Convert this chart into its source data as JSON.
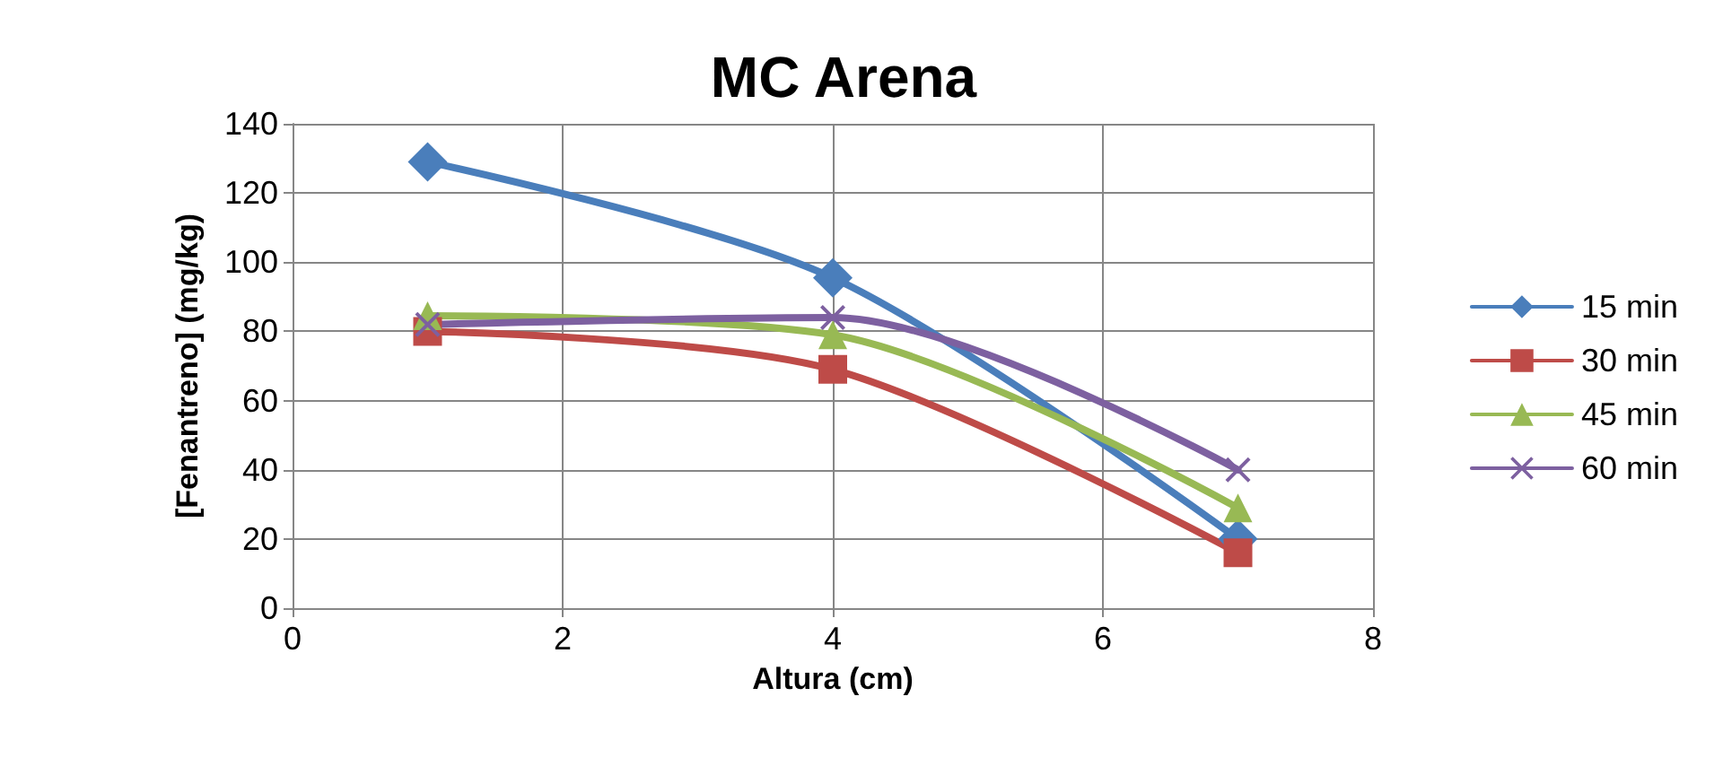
{
  "chart_data": {
    "type": "line",
    "title": "MC Arena",
    "xlabel": "Altura (cm)",
    "ylabel": "[Fenantreno] (mg/kg)",
    "xlim": [
      0,
      8
    ],
    "xticks": [
      0,
      2,
      4,
      6,
      8
    ],
    "ylim": [
      0,
      140
    ],
    "yticks": [
      0,
      20,
      40,
      60,
      80,
      100,
      120,
      140
    ],
    "grid": true,
    "legend": "right",
    "series": [
      {
        "name": "15 min",
        "color": "#4a7ebb",
        "marker": "diamond",
        "x": [
          1,
          4,
          7
        ],
        "values": [
          129,
          95.5,
          20
        ]
      },
      {
        "name": "30 min",
        "color": "#be4b48",
        "marker": "square",
        "x": [
          1,
          4,
          7
        ],
        "values": [
          80,
          69,
          16
        ]
      },
      {
        "name": "45 min",
        "color": "#98b954",
        "marker": "triangle",
        "x": [
          1,
          4,
          7
        ],
        "values": [
          84.5,
          79,
          29
        ]
      },
      {
        "name": "60 min",
        "color": "#7d60a0",
        "marker": "cross",
        "x": [
          1,
          4,
          7
        ],
        "values": [
          82,
          84,
          40
        ]
      }
    ]
  }
}
